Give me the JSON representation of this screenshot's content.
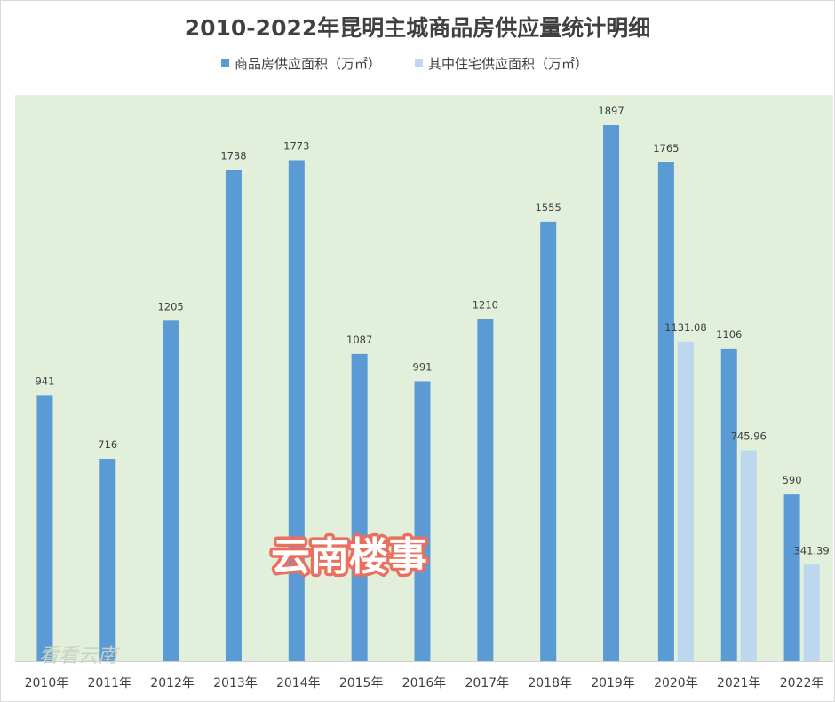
{
  "chart_data": {
    "type": "bar",
    "title": "2010-2022年昆明主城商品房供应量统计明细",
    "categories": [
      "2010年",
      "2011年",
      "2012年",
      "2013年",
      "2014年",
      "2015年",
      "2016年",
      "2017年",
      "2018年",
      "2019年",
      "2020年",
      "2021年",
      "2022年"
    ],
    "series": [
      {
        "name": "商品房供应面积（万㎡）",
        "color": "#5b9bd5",
        "values": [
          941,
          716,
          1205,
          1738,
          1773,
          1087,
          991,
          1210,
          1555,
          1897,
          1765,
          1106,
          590
        ],
        "labels": [
          "941",
          "716",
          "1205",
          "1738",
          "1773",
          "1087",
          "991",
          "1210",
          "1555",
          "1897",
          "1765",
          "1106",
          "590"
        ]
      },
      {
        "name": "其中住宅供应面积（万㎡）",
        "color": "#bdd7ee",
        "values": [
          null,
          null,
          null,
          null,
          null,
          null,
          null,
          null,
          null,
          null,
          1131.08,
          745.96,
          341.39
        ],
        "labels": [
          "",
          "",
          "",
          "",
          "",
          "",
          "",
          "",
          "",
          "",
          "1131.08",
          "745.96",
          "341.39"
        ]
      }
    ],
    "ylim": [
      0,
      2000
    ],
    "grid": false,
    "legend": "top-center",
    "plot_background": "#e2efda"
  },
  "watermarks": {
    "main": "云南楼事",
    "corner": "看看云南"
  }
}
